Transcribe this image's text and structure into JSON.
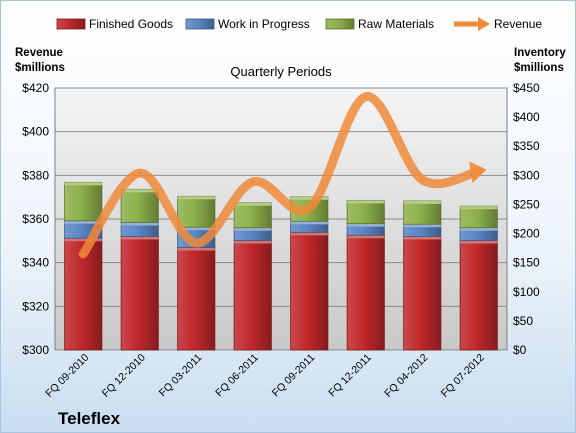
{
  "company": "Teleflex",
  "chart_data": {
    "type": "bar",
    "subtitle": "Quarterly Periods",
    "left_axis_title": [
      "Revenue",
      "$millions"
    ],
    "right_axis_title": [
      "Inventory",
      "$millions"
    ],
    "categories": [
      "FQ 09-2010",
      "FQ 12-2010",
      "FQ 03-2011",
      "FQ 06-2011",
      "FQ 09-2011",
      "FQ 12-2011",
      "FQ 04-2012",
      "FQ 07-2012"
    ],
    "stacked": true,
    "series": [
      {
        "name": "Finished Goods",
        "axis": "right",
        "color": "#c0282b",
        "values": [
          192,
          195,
          176,
          188,
          202,
          197,
          195,
          188
        ]
      },
      {
        "name": "Work in Progress",
        "axis": "right",
        "color": "#5a86c4",
        "values": [
          30,
          24,
          35,
          22,
          19,
          20,
          21,
          22
        ]
      },
      {
        "name": "Raw Materials",
        "axis": "right",
        "color": "#8db04a",
        "values": [
          66,
          57,
          53,
          43,
          42,
          40,
          40,
          37
        ]
      },
      {
        "name": "Revenue",
        "type": "line",
        "axis": "left",
        "color": "#ef8a3a",
        "values": [
          344,
          381,
          349,
          377,
          365,
          416,
          378,
          382
        ]
      }
    ],
    "left_axis": {
      "min": 300,
      "max": 420,
      "step": 20,
      "ticks": [
        "$300",
        "$320",
        "$340",
        "$360",
        "$380",
        "$400",
        "$420"
      ]
    },
    "right_axis": {
      "min": 0,
      "max": 450,
      "step": 50,
      "ticks": [
        "$0",
        "$50",
        "$100",
        "$150",
        "$200",
        "$250",
        "$300",
        "$350",
        "$400",
        "$450"
      ]
    },
    "grid": true,
    "legend_position": "top"
  }
}
